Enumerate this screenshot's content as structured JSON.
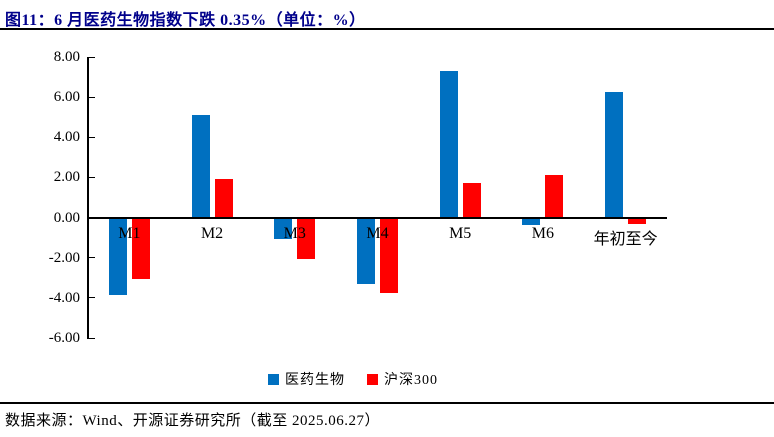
{
  "title": "图11：6 月医药生物指数下跌 0.35%（单位：%）",
  "footer": {
    "source_text": "数据来源：Wind、开源证券研究所（截至 2025.06.27）"
  },
  "colors": {
    "title": "#00008B",
    "series_pharma_blue": "#0070C0",
    "series_index_red": "#FF0000",
    "axis": "#000000"
  },
  "chart_data": {
    "type": "bar",
    "categories": [
      "M1",
      "M2",
      "M3",
      "M4",
      "M5",
      "M6",
      "年初至今"
    ],
    "series": [
      {
        "name": "医药生物",
        "color": "#0070C0",
        "values": [
          -3.85,
          5.1,
          -1.08,
          -3.3,
          7.3,
          -0.35,
          6.25
        ]
      },
      {
        "name": "沪深300",
        "color": "#FF0000",
        "values": [
          -3.05,
          1.93,
          -2.05,
          -3.75,
          1.7,
          2.1,
          -0.3
        ]
      }
    ],
    "title": "图11：6 月医药生物指数下跌 0.35%（单位：%）",
    "xlabel": "",
    "ylabel": "",
    "ylim": [
      -6,
      8
    ],
    "ytick_labels": [
      "8.00",
      "6.00",
      "4.00",
      "2.00",
      "0.00",
      "-2.00",
      "-4.00",
      "-6.00"
    ],
    "grid": false,
    "legend_position": "bottom"
  }
}
